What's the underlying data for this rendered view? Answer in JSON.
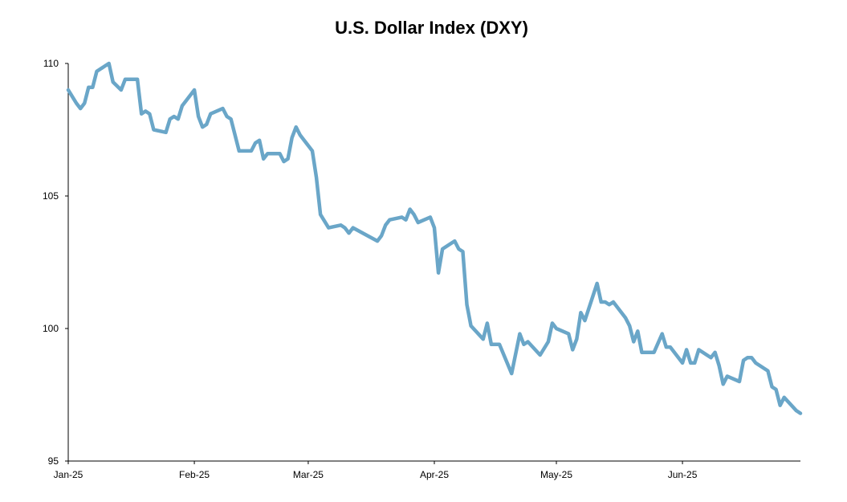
{
  "chart_data": {
    "type": "line",
    "title": "U.S. Dollar Index (DXY)",
    "xlabel": "",
    "ylabel": "",
    "ylim": [
      95,
      110
    ],
    "yticks": [
      95,
      100,
      105,
      110
    ],
    "xlim": [
      "2025-01-01",
      "2025-06-30"
    ],
    "xticks": [
      {
        "date": "2025-01-01",
        "label": "Jan-25"
      },
      {
        "date": "2025-02-01",
        "label": "Feb-25"
      },
      {
        "date": "2025-03-01",
        "label": "Mar-25"
      },
      {
        "date": "2025-04-01",
        "label": "Apr-25"
      },
      {
        "date": "2025-05-01",
        "label": "May-25"
      },
      {
        "date": "2025-06-01",
        "label": "Jun-25"
      }
    ],
    "grid": false,
    "legend": "none",
    "line_color": "#6aa6c8",
    "series": [
      {
        "points": [
          [
            "2025-01-01",
            109.0
          ],
          [
            "2025-01-03",
            108.5
          ],
          [
            "2025-01-04",
            108.3
          ],
          [
            "2025-01-05",
            108.5
          ],
          [
            "2025-01-06",
            109.1
          ],
          [
            "2025-01-07",
            109.1
          ],
          [
            "2025-01-08",
            109.7
          ],
          [
            "2025-01-10",
            109.9
          ],
          [
            "2025-01-11",
            110.0
          ],
          [
            "2025-01-12",
            109.3
          ],
          [
            "2025-01-14",
            109.0
          ],
          [
            "2025-01-15",
            109.4
          ],
          [
            "2025-01-18",
            109.4
          ],
          [
            "2025-01-19",
            108.1
          ],
          [
            "2025-01-20",
            108.2
          ],
          [
            "2025-01-21",
            108.1
          ],
          [
            "2025-01-22",
            107.5
          ],
          [
            "2025-01-25",
            107.4
          ],
          [
            "2025-01-26",
            107.9
          ],
          [
            "2025-01-27",
            108.0
          ],
          [
            "2025-01-28",
            107.9
          ],
          [
            "2025-01-29",
            108.4
          ],
          [
            "2025-02-01",
            109.0
          ],
          [
            "2025-02-02",
            108.0
          ],
          [
            "2025-02-03",
            107.6
          ],
          [
            "2025-02-04",
            107.7
          ],
          [
            "2025-02-05",
            108.1
          ],
          [
            "2025-02-08",
            108.3
          ],
          [
            "2025-02-09",
            108.0
          ],
          [
            "2025-02-10",
            107.9
          ],
          [
            "2025-02-12",
            106.7
          ],
          [
            "2025-02-15",
            106.7
          ],
          [
            "2025-02-16",
            107.0
          ],
          [
            "2025-02-17",
            107.1
          ],
          [
            "2025-02-18",
            106.4
          ],
          [
            "2025-02-19",
            106.6
          ],
          [
            "2025-02-22",
            106.6
          ],
          [
            "2025-02-23",
            106.3
          ],
          [
            "2025-02-24",
            106.4
          ],
          [
            "2025-02-25",
            107.2
          ],
          [
            "2025-02-26",
            107.6
          ],
          [
            "2025-02-27",
            107.3
          ],
          [
            "2025-03-02",
            106.7
          ],
          [
            "2025-03-03",
            105.7
          ],
          [
            "2025-03-04",
            104.3
          ],
          [
            "2025-03-06",
            103.8
          ],
          [
            "2025-03-09",
            103.9
          ],
          [
            "2025-03-10",
            103.8
          ],
          [
            "2025-03-11",
            103.6
          ],
          [
            "2025-03-12",
            103.8
          ],
          [
            "2025-03-18",
            103.3
          ],
          [
            "2025-03-19",
            103.5
          ],
          [
            "2025-03-20",
            103.9
          ],
          [
            "2025-03-21",
            104.1
          ],
          [
            "2025-03-24",
            104.2
          ],
          [
            "2025-03-25",
            104.1
          ],
          [
            "2025-03-26",
            104.5
          ],
          [
            "2025-03-27",
            104.3
          ],
          [
            "2025-03-28",
            104.0
          ],
          [
            "2025-03-31",
            104.2
          ],
          [
            "2025-04-01",
            103.8
          ],
          [
            "2025-04-02",
            102.1
          ],
          [
            "2025-04-03",
            103.0
          ],
          [
            "2025-04-05",
            103.2
          ],
          [
            "2025-04-06",
            103.3
          ],
          [
            "2025-04-07",
            103.0
          ],
          [
            "2025-04-08",
            102.9
          ],
          [
            "2025-04-09",
            100.9
          ],
          [
            "2025-04-10",
            100.1
          ],
          [
            "2025-04-13",
            99.6
          ],
          [
            "2025-04-14",
            100.2
          ],
          [
            "2025-04-15",
            99.4
          ],
          [
            "2025-04-17",
            99.4
          ],
          [
            "2025-04-20",
            98.3
          ],
          [
            "2025-04-22",
            99.8
          ],
          [
            "2025-04-23",
            99.4
          ],
          [
            "2025-04-24",
            99.5
          ],
          [
            "2025-04-27",
            99.0
          ],
          [
            "2025-04-29",
            99.5
          ],
          [
            "2025-04-30",
            100.2
          ],
          [
            "2025-05-01",
            100.0
          ],
          [
            "2025-05-04",
            99.8
          ],
          [
            "2025-05-05",
            99.2
          ],
          [
            "2025-05-06",
            99.6
          ],
          [
            "2025-05-07",
            100.6
          ],
          [
            "2025-05-08",
            100.3
          ],
          [
            "2025-05-11",
            101.7
          ],
          [
            "2025-05-12",
            101.0
          ],
          [
            "2025-05-13",
            101.0
          ],
          [
            "2025-05-14",
            100.9
          ],
          [
            "2025-05-15",
            101.0
          ],
          [
            "2025-05-18",
            100.4
          ],
          [
            "2025-05-19",
            100.1
          ],
          [
            "2025-05-20",
            99.5
          ],
          [
            "2025-05-21",
            99.9
          ],
          [
            "2025-05-22",
            99.1
          ],
          [
            "2025-05-25",
            99.1
          ],
          [
            "2025-05-27",
            99.8
          ],
          [
            "2025-05-28",
            99.3
          ],
          [
            "2025-05-29",
            99.3
          ],
          [
            "2025-06-01",
            98.7
          ],
          [
            "2025-06-02",
            99.2
          ],
          [
            "2025-06-03",
            98.7
          ],
          [
            "2025-06-04",
            98.7
          ],
          [
            "2025-06-05",
            99.2
          ],
          [
            "2025-06-07",
            99.0
          ],
          [
            "2025-06-08",
            98.9
          ],
          [
            "2025-06-09",
            99.1
          ],
          [
            "2025-06-10",
            98.6
          ],
          [
            "2025-06-11",
            97.9
          ],
          [
            "2025-06-12",
            98.2
          ],
          [
            "2025-06-15",
            98.0
          ],
          [
            "2025-06-16",
            98.8
          ],
          [
            "2025-06-17",
            98.9
          ],
          [
            "2025-06-18",
            98.9
          ],
          [
            "2025-06-19",
            98.7
          ],
          [
            "2025-06-22",
            98.4
          ],
          [
            "2025-06-23",
            97.8
          ],
          [
            "2025-06-24",
            97.7
          ],
          [
            "2025-06-25",
            97.1
          ],
          [
            "2025-06-26",
            97.4
          ],
          [
            "2025-06-29",
            96.9
          ],
          [
            "2025-06-30",
            96.8
          ]
        ]
      }
    ]
  }
}
